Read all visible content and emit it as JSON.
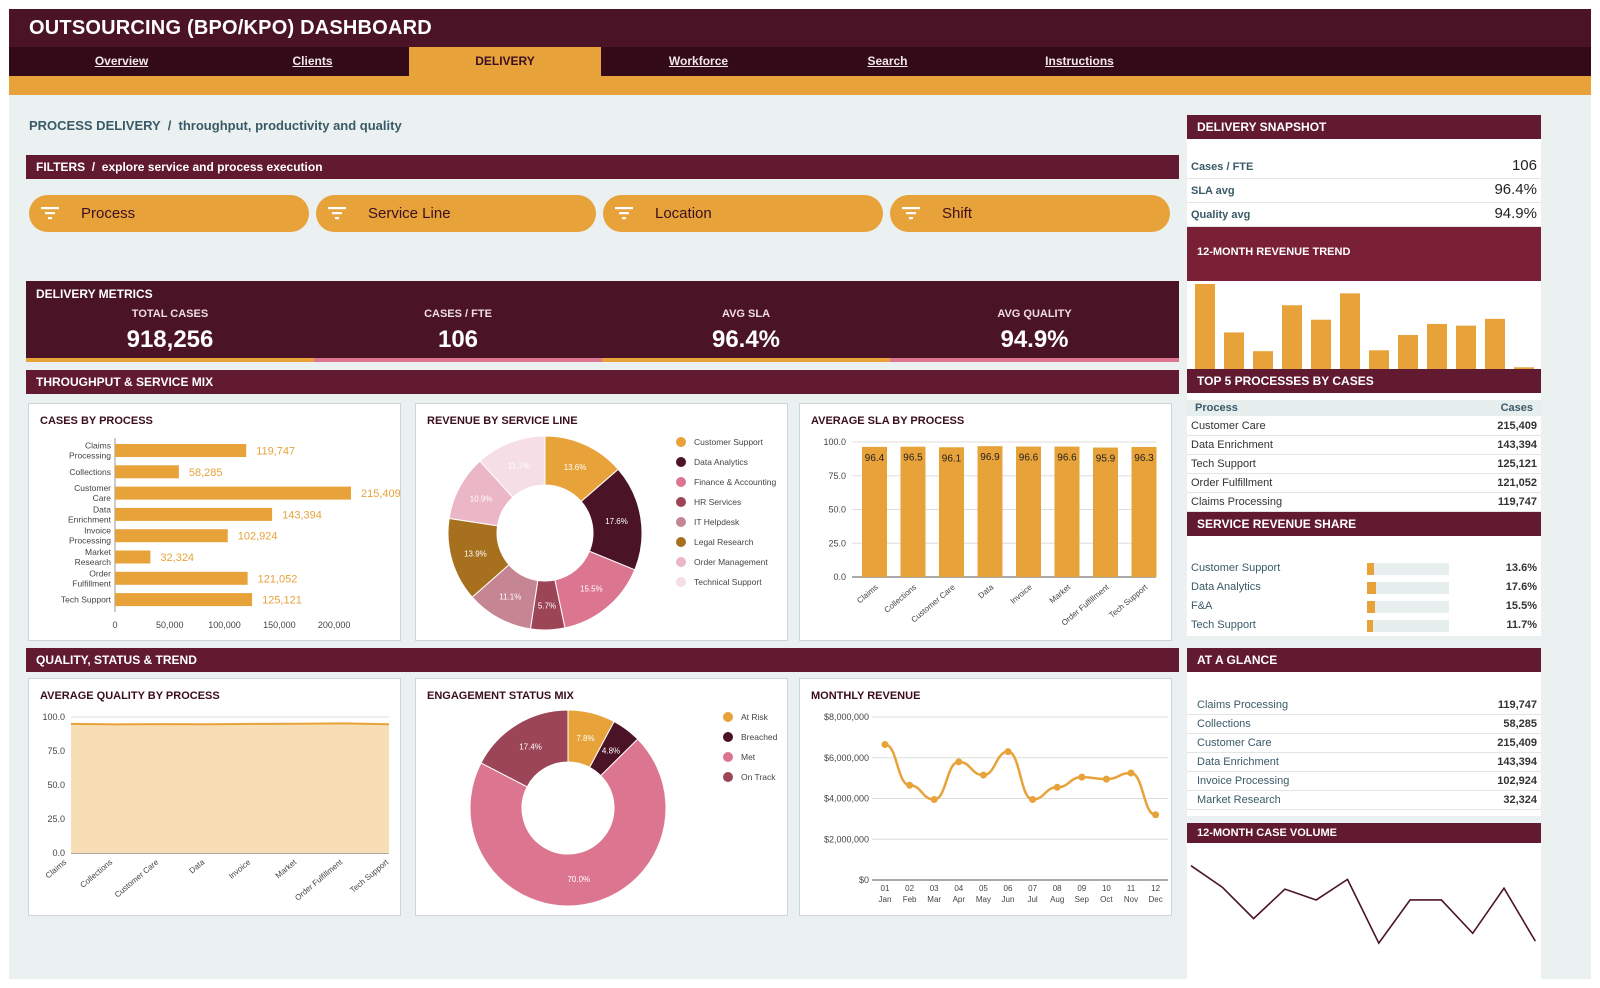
{
  "header": {
    "title": "OUTSOURCING (BPO/KPO) DASHBOARD"
  },
  "nav": {
    "tabs": [
      {
        "label": "Overview"
      },
      {
        "label": "Clients"
      },
      {
        "label": "DELIVERY",
        "active": true
      },
      {
        "label": "Workforce"
      },
      {
        "label": "Search"
      },
      {
        "label": "Instructions"
      }
    ]
  },
  "page": {
    "title": "PROCESS DELIVERY  /  throughput, productivity and quality"
  },
  "filters": {
    "title": "FILTERS  /  explore service and process execution",
    "items": [
      {
        "label": "Process"
      },
      {
        "label": "Service Line"
      },
      {
        "label": "Location"
      },
      {
        "label": "Shift"
      }
    ]
  },
  "metrics": {
    "title": "DELIVERY METRICS",
    "kpis": [
      {
        "label": "TOTAL CASES",
        "value": "918,256"
      },
      {
        "label": "CASES / FTE",
        "value": "106"
      },
      {
        "label": "AVG SLA",
        "value": "96.4%"
      },
      {
        "label": "AVG QUALITY",
        "value": "94.9%"
      }
    ]
  },
  "sections": {
    "throughput": "THROUGHPUT & SERVICE MIX",
    "quality": "QUALITY, STATUS & TREND"
  },
  "colors": {
    "maroon": "#611a30",
    "dark_maroon": "#4a1326",
    "amber": "#e8a23a",
    "pink": "#dc7690",
    "rose": "#9c4557",
    "mauve": "#c68592",
    "light_pink": "#ebb6c5",
    "pale_pink": "#f5dee5",
    "brown": "#a6701f"
  },
  "charts": {
    "cases_by_process": {
      "title": "CASES BY PROCESS",
      "chart_data": {
        "type": "bar",
        "orientation": "horizontal",
        "categories": [
          "Claims Processing",
          "Collections",
          "Customer Care",
          "Data Enrichment",
          "Invoice Processing",
          "Market Research",
          "Order Fulfillment",
          "Tech Support"
        ],
        "values": [
          119747,
          58285,
          215409,
          143394,
          102924,
          32324,
          121052,
          125121
        ],
        "data_labels": [
          "119,747",
          "58,285",
          "215,409",
          "143,394",
          "102,924",
          "32,324",
          "121,052",
          "125,121"
        ],
        "xticks": [
          "0",
          "50,000",
          "100,000",
          "150,000",
          "200,000"
        ],
        "xlim": [
          0,
          215409
        ]
      }
    },
    "revenue_by_service_line": {
      "title": "REVENUE BY SERVICE LINE",
      "chart_data": {
        "type": "pie",
        "donut": true,
        "labels": [
          "Customer Support",
          "Data Analytics",
          "Finance & Accounting",
          "HR Services",
          "IT Helpdesk",
          "Legal Research",
          "Order Management",
          "Technical Support"
        ],
        "values": [
          13.6,
          17.6,
          15.5,
          5.7,
          11.1,
          13.9,
          10.9,
          11.7
        ],
        "data_labels": [
          "13.6%",
          "17.6%",
          "15.5%",
          "5.7%",
          "11.1%",
          "13.9%",
          "10.9%",
          "11.7%"
        ],
        "draw_order": [
          0,
          1,
          2,
          3,
          4,
          5,
          6,
          7
        ],
        "legend": "right"
      }
    },
    "avg_sla_by_process": {
      "title": "AVERAGE SLA BY PROCESS",
      "chart_data": {
        "type": "bar",
        "categories": [
          "Claims",
          "Collections",
          "Customer Care",
          "Data",
          "Invoice",
          "Market",
          "Order Fulfillment",
          "Tech Support"
        ],
        "values": [
          96.4,
          96.5,
          96.1,
          96.9,
          96.6,
          96.6,
          95.9,
          96.3
        ],
        "data_labels": [
          "96.4",
          "96.5",
          "96.1",
          "96.9",
          "96.6",
          "96.6",
          "95.9",
          "96.3"
        ],
        "yticks": [
          "0.0",
          "25.0",
          "50.0",
          "75.0",
          "100.0"
        ],
        "ylim": [
          0,
          100
        ],
        "grid": true
      }
    },
    "avg_quality_by_process": {
      "title": "AVERAGE QUALITY BY PROCESS",
      "chart_data": {
        "type": "area",
        "categories": [
          "Claims",
          "Collections",
          "Customer Care",
          "Data",
          "Invoice",
          "Market",
          "Order Fulfillment",
          "Tech Support"
        ],
        "values": [
          94.9,
          94.6,
          94.8,
          94.7,
          94.9,
          95.0,
          95.3,
          94.7
        ],
        "yticks": [
          "0.0",
          "25.0",
          "50.0",
          "75.0",
          "100.0"
        ],
        "ylim": [
          0,
          100
        ],
        "grid": true
      }
    },
    "engagement_status_mix": {
      "title": "ENGAGEMENT STATUS MIX",
      "chart_data": {
        "type": "pie",
        "donut": true,
        "labels": [
          "At Risk",
          "Breached",
          "Met",
          "On Track"
        ],
        "values": [
          7.8,
          4.8,
          70.0,
          17.4
        ],
        "data_labels": [
          "7.8%",
          "4.8%",
          "70.0%",
          "17.4%"
        ],
        "legend": "right"
      }
    },
    "monthly_revenue": {
      "title": "MONTHLY REVENUE",
      "chart_data": {
        "type": "line",
        "x": [
          "01 Jan",
          "02 Feb",
          "03 Mar",
          "04 Apr",
          "05 May",
          "06 Jun",
          "07 Jul",
          "08 Aug",
          "09 Sep",
          "10 Oct",
          "11 Nov",
          "12 Dec"
        ],
        "x_top": [
          "01",
          "02",
          "03",
          "04",
          "05",
          "06",
          "07",
          "08",
          "09",
          "10",
          "11",
          "12"
        ],
        "x_bottom": [
          "Jan",
          "Feb",
          "Mar",
          "Apr",
          "May",
          "Jun",
          "Jul",
          "Aug",
          "Sep",
          "Oct",
          "Nov",
          "Dec"
        ],
        "values": [
          6650000,
          4650000,
          3950000,
          5800000,
          5150000,
          6300000,
          3950000,
          4550000,
          5050000,
          4950000,
          5250000,
          3200000
        ],
        "yticks": [
          "$0",
          "$2,000,000",
          "$4,000,000",
          "$6,000,000",
          "$8,000,000"
        ],
        "ylim": [
          0,
          8000000
        ],
        "grid": true
      }
    }
  },
  "snapshot": {
    "title": "DELIVERY SNAPSHOT",
    "rows": [
      {
        "label": "Cases / FTE",
        "value": "106"
      },
      {
        "label": "SLA avg",
        "value": "96.4%"
      },
      {
        "label": "Quality avg",
        "value": "94.9%"
      }
    ]
  },
  "revenue_trend": {
    "title": "12-MONTH REVENUE TREND",
    "chart_data": {
      "type": "bar",
      "values": [
        100,
        43,
        21,
        75,
        58,
        89,
        22,
        40,
        53,
        51,
        59,
        2
      ],
      "ylim": [
        0,
        100
      ]
    }
  },
  "top5": {
    "title": "TOP 5 PROCESSES BY CASES",
    "columns": [
      "Process",
      "Cases"
    ],
    "rows": [
      {
        "process": "Customer Care",
        "cases": "215,409"
      },
      {
        "process": "Data Enrichment",
        "cases": "143,394"
      },
      {
        "process": "Tech Support",
        "cases": "125,121"
      },
      {
        "process": "Order Fulfillment",
        "cases": "121,052"
      },
      {
        "process": "Claims Processing",
        "cases": "119,747"
      }
    ]
  },
  "revenue_share": {
    "title": "SERVICE REVENUE SHARE",
    "rows": [
      {
        "label": "Customer Support",
        "pct": "13.6%",
        "value": 13.6
      },
      {
        "label": "Data Analytics",
        "pct": "17.6%",
        "value": 17.6
      },
      {
        "label": "F&A",
        "pct": "15.5%",
        "value": 15.5
      },
      {
        "label": "Tech Support",
        "pct": "11.7%",
        "value": 11.7
      }
    ]
  },
  "at_a_glance": {
    "title": "AT A GLANCE",
    "rows": [
      {
        "label": "Claims Processing",
        "value": "119,747"
      },
      {
        "label": "Collections",
        "value": "58,285"
      },
      {
        "label": "Customer Care",
        "value": "215,409"
      },
      {
        "label": "Data Enrichment",
        "value": "143,394"
      },
      {
        "label": "Invoice Processing",
        "value": "102,924"
      },
      {
        "label": "Market Research",
        "value": "32,324"
      }
    ]
  },
  "case_volume": {
    "title": "12-MONTH CASE VOLUME",
    "chart_data": {
      "type": "line",
      "values": [
        83,
        61,
        29,
        59,
        48,
        69,
        4,
        48,
        48,
        14,
        60,
        6
      ],
      "ylim": [
        0,
        100
      ]
    }
  }
}
